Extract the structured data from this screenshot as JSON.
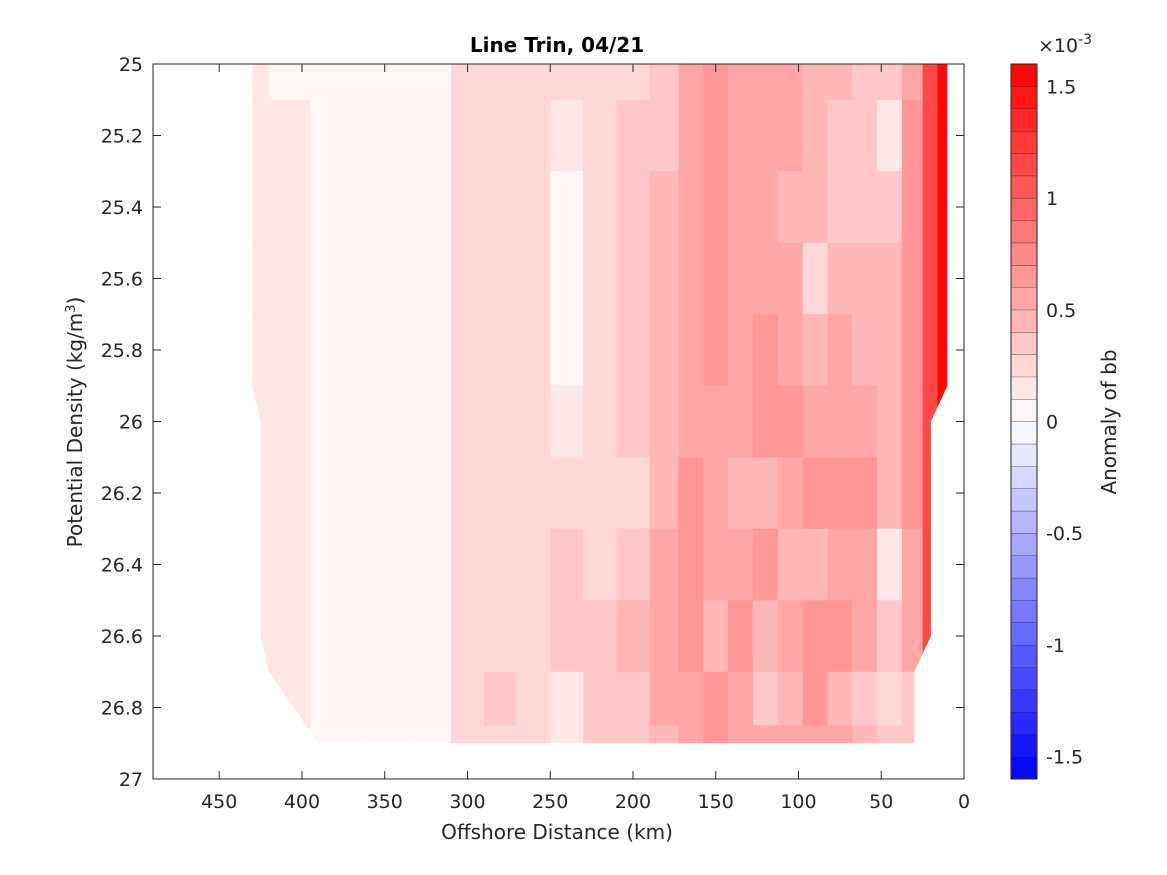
{
  "chart_data": {
    "type": "heatmap",
    "plot_style": "filled contour",
    "title": "Line Trin, 04/21",
    "xlabel": "Offshore Distance (km)",
    "ylabel": "Potential Density (kg/m",
    "ylabel_superscript": "3",
    "ylabel_suffix": ")",
    "colorbar_label": "Anomaly of bb",
    "colorbar_multiplier_base": "×10",
    "colorbar_multiplier_exp": "-3",
    "x_reversed": true,
    "y_reversed": true,
    "xlim": [
      0,
      490
    ],
    "ylim": [
      25,
      27
    ],
    "x_ticks": [
      450,
      400,
      350,
      300,
      250,
      200,
      150,
      100,
      50,
      0
    ],
    "y_ticks": [
      25,
      25.2,
      25.4,
      25.6,
      25.8,
      26,
      26.2,
      26.4,
      26.6,
      26.8,
      27
    ],
    "x_tick_labels": [
      "450",
      "400",
      "350",
      "300",
      "250",
      "200",
      "150",
      "100",
      "50",
      "0"
    ],
    "y_tick_labels": [
      "25",
      "25.2",
      "25.4",
      "25.6",
      "25.8",
      "26",
      "26.2",
      "26.4",
      "26.6",
      "26.8",
      "27"
    ],
    "colorbar_ticks": [
      -1.5,
      -1,
      -0.5,
      0,
      0.5,
      1,
      1.5
    ],
    "colorbar_tick_labels": [
      "-1.5",
      "-1",
      "-0.5",
      "0",
      "0.5",
      "1",
      "1.5"
    ],
    "colorbar_range": [
      -1.6,
      1.6
    ],
    "colorbar_levels": 32,
    "colormap": {
      "negative": "#0000ff",
      "zero": "#ffffff",
      "positive": "#ff0000"
    },
    "x_coverage": {
      "density": [
        25,
        25.9,
        26,
        26.6,
        26.7,
        26.9
      ],
      "offshore_max_km": [
        430,
        430,
        425,
        425,
        420,
        390
      ],
      "nearshore_min_km": [
        10,
        10,
        20,
        20,
        30,
        30
      ]
    },
    "bottom_edge_density": 26.9,
    "columns_x": [
      430,
      410,
      380,
      350,
      320,
      300,
      280,
      260,
      240,
      220,
      200,
      180,
      165,
      150,
      135,
      120,
      105,
      90,
      75,
      60,
      45,
      30,
      20,
      12
    ],
    "rows_y": [
      25.0,
      25.2,
      25.4,
      25.6,
      25.8,
      26.0,
      26.2,
      26.4,
      26.6,
      26.8,
      26.9
    ],
    "anomaly_values": [
      [
        0.12,
        0.08,
        0.08,
        0.08,
        0.08,
        0.25,
        0.25,
        0.25,
        0.25,
        0.25,
        0.25,
        0.35,
        0.55,
        0.65,
        0.55,
        0.5,
        0.5,
        0.45,
        0.45,
        0.35,
        0.3,
        0.5,
        1.2,
        1.6
      ],
      [
        0.15,
        0.1,
        0.08,
        0.08,
        0.08,
        0.25,
        0.25,
        0.25,
        0.1,
        0.25,
        0.3,
        0.35,
        0.55,
        0.65,
        0.5,
        0.5,
        0.5,
        0.4,
        0.35,
        0.35,
        0.15,
        0.6,
        1.2,
        1.6
      ],
      [
        0.15,
        0.1,
        0.08,
        0.08,
        0.08,
        0.25,
        0.25,
        0.25,
        0.05,
        0.25,
        0.3,
        0.4,
        0.55,
        0.65,
        0.5,
        0.5,
        0.45,
        0.4,
        0.3,
        0.3,
        0.35,
        0.6,
        1.2,
        1.6
      ],
      [
        0.15,
        0.1,
        0.08,
        0.08,
        0.08,
        0.25,
        0.25,
        0.25,
        0.05,
        0.25,
        0.3,
        0.4,
        0.5,
        0.6,
        0.5,
        0.5,
        0.5,
        0.2,
        0.45,
        0.4,
        0.4,
        0.6,
        1.2,
        1.6
      ],
      [
        0.15,
        0.1,
        0.08,
        0.08,
        0.08,
        0.25,
        0.25,
        0.25,
        0.05,
        0.2,
        0.3,
        0.4,
        0.55,
        0.6,
        0.55,
        0.6,
        0.5,
        0.4,
        0.55,
        0.45,
        0.45,
        0.6,
        1.2,
        1.6
      ],
      [
        0.15,
        0.1,
        0.08,
        0.08,
        0.08,
        0.25,
        0.25,
        0.25,
        0.1,
        0.2,
        0.3,
        0.45,
        0.55,
        0.55,
        0.5,
        0.6,
        0.6,
        0.55,
        0.5,
        0.5,
        0.45,
        0.6,
        1.2,
        1.6
      ],
      [
        0.15,
        0.1,
        0.08,
        0.08,
        0.08,
        0.25,
        0.25,
        0.25,
        0.2,
        0.25,
        0.25,
        0.45,
        0.6,
        0.5,
        0.45,
        0.45,
        0.55,
        0.6,
        0.6,
        0.6,
        0.45,
        0.6,
        1.2,
        1.6
      ],
      [
        0.15,
        0.1,
        0.08,
        0.08,
        0.08,
        0.25,
        0.25,
        0.25,
        0.3,
        0.25,
        0.35,
        0.5,
        0.7,
        0.55,
        0.5,
        0.65,
        0.45,
        0.45,
        0.55,
        0.5,
        0.15,
        0.55,
        1.2,
        1.6
      ],
      [
        0.15,
        0.1,
        0.08,
        0.08,
        0.08,
        0.2,
        0.2,
        0.25,
        0.3,
        0.35,
        0.45,
        0.55,
        0.6,
        0.45,
        0.6,
        0.45,
        0.5,
        0.7,
        0.6,
        0.5,
        0.3,
        0.5,
        1.2,
        1.6
      ],
      [
        0.15,
        0.1,
        0.08,
        0.08,
        0.08,
        0.2,
        0.3,
        0.2,
        0.1,
        0.3,
        0.35,
        0.5,
        0.55,
        0.7,
        0.5,
        0.3,
        0.45,
        0.6,
        0.4,
        0.3,
        0.25,
        0.3,
        1.2,
        1.6
      ],
      [
        0.15,
        0.1,
        0.08,
        0.08,
        0.08,
        0.2,
        0.25,
        0.2,
        0.15,
        0.3,
        0.35,
        0.45,
        0.55,
        0.6,
        0.55,
        0.55,
        0.5,
        0.5,
        0.5,
        0.4,
        0.3,
        0.3,
        1.2,
        1.6
      ]
    ]
  }
}
